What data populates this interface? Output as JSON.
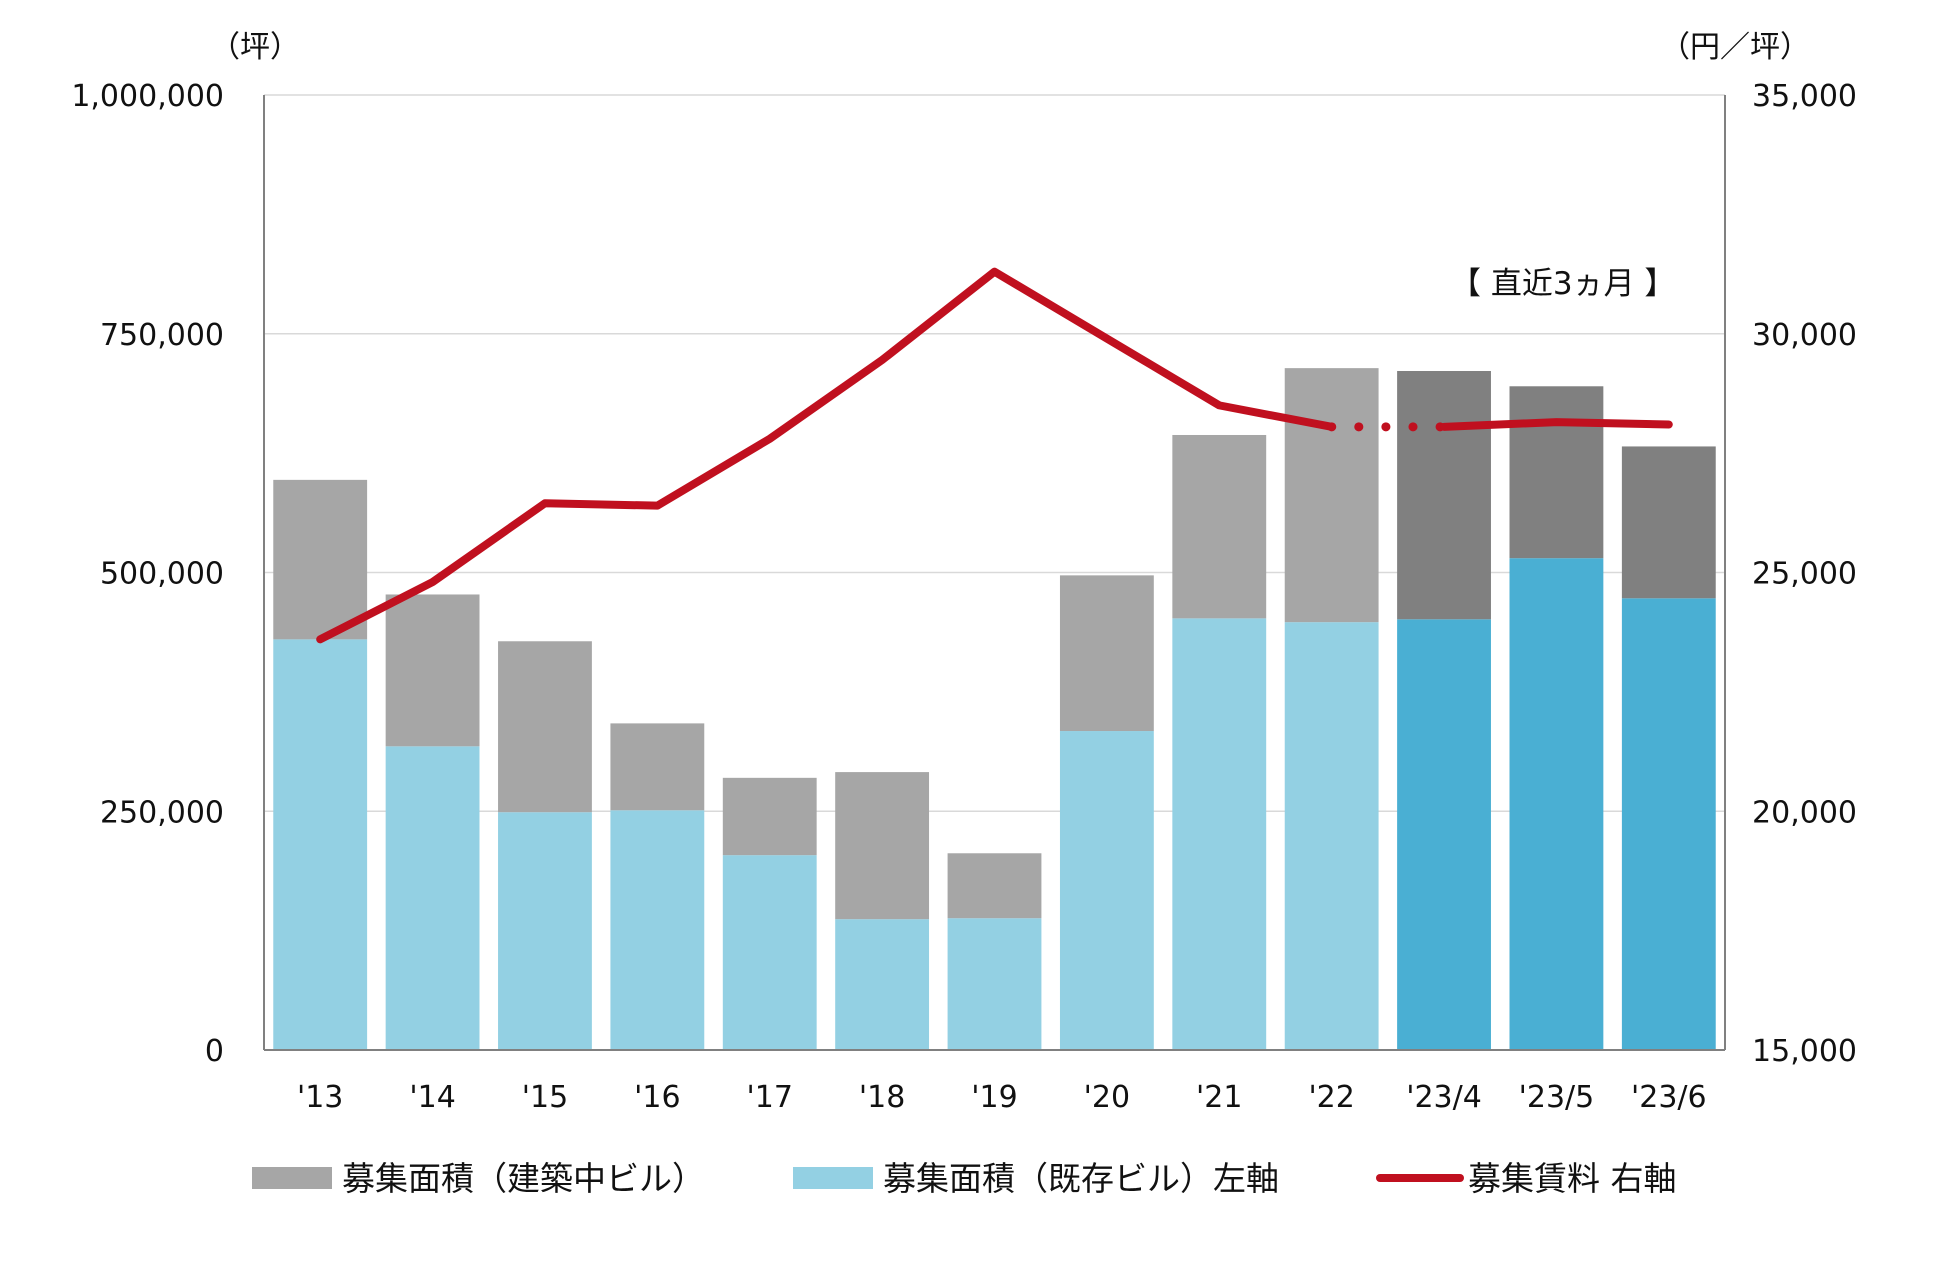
{
  "chart_data": {
    "type": "bar",
    "stacked": true,
    "categories": [
      "'13",
      "'14",
      "'15",
      "'16",
      "'17",
      "'18",
      "'19",
      "'20",
      "'21",
      "'22",
      "'23/4",
      "'23/5",
      "'23/6"
    ],
    "highlight_from_index": 10,
    "series": [
      {
        "name": "募集面積（既存ビル）左軸",
        "axis": "left",
        "kind": "bar",
        "values": [
          430000,
          318000,
          249000,
          251000,
          204000,
          137000,
          138000,
          334000,
          452000,
          448000,
          451000,
          515000,
          473000
        ],
        "color": "#93d0e3",
        "highlight_color": "#4aafd3"
      },
      {
        "name": "募集面積（建築中ビル）",
        "axis": "left",
        "kind": "bar",
        "values": [
          167000,
          159000,
          179000,
          91000,
          81000,
          154000,
          68000,
          163000,
          192000,
          266000,
          260000,
          180000,
          159000
        ],
        "color": "#a6a6a6",
        "highlight_color": "#808080"
      },
      {
        "name": "募集賃料 右軸",
        "axis": "right",
        "kind": "line",
        "values": [
          23600,
          24800,
          26450,
          26400,
          27800,
          29450,
          31300,
          29900,
          28500,
          28050,
          28050,
          28150,
          28100
        ],
        "color": "#c0101f",
        "dotted_segment": [
          9,
          10
        ]
      }
    ],
    "left_axis": {
      "unit": "（坪）",
      "min": 0,
      "max": 1000000,
      "ticks": [
        "0",
        "250,000",
        "500,000",
        "750,000",
        "1,000,000"
      ]
    },
    "right_axis": {
      "unit": "（円／坪）",
      "min": 15000,
      "max": 35000,
      "ticks": [
        "15,000",
        "20,000",
        "25,000",
        "30,000",
        "35,000"
      ]
    },
    "annotation": "【 直近3ヵ月 】",
    "legend": [
      {
        "label": "募集面積（建築中ビル）",
        "color": "#a6a6a6",
        "kind": "box"
      },
      {
        "label": "募集面積（既存ビル）左軸",
        "color": "#93d0e3",
        "kind": "box"
      },
      {
        "label": "募集賃料 右軸",
        "color": "#c0101f",
        "kind": "line"
      }
    ],
    "grid": true,
    "legend_position": "bottom"
  }
}
